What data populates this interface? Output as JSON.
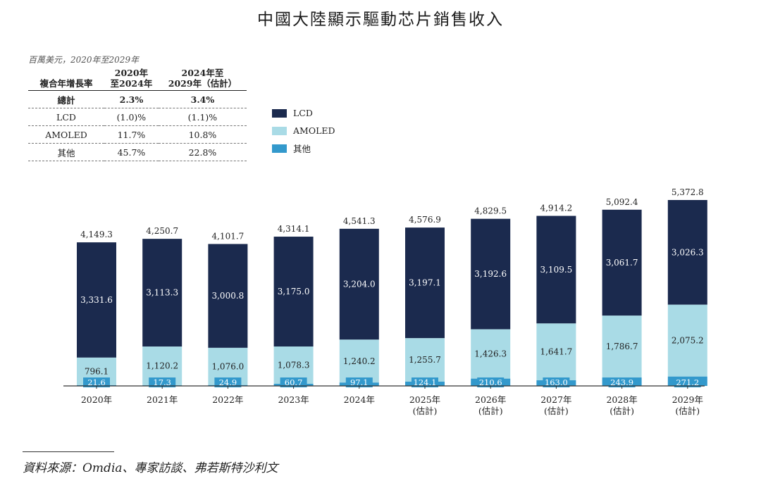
{
  "title": "中國大陸顯示驅動芯片銷售收入",
  "unit_label": "百萬美元，2020年至2029年",
  "cagr_table": {
    "header_label": "複合年增長率",
    "col1": [
      "2020年",
      "至2024年"
    ],
    "col2": [
      "2024年至",
      "2029年（估計）"
    ],
    "rows": [
      {
        "label": "總計",
        "v1": "2.3%",
        "v2": "3.4%"
      },
      {
        "label": "LCD",
        "v1": "(1.0)%",
        "v2": "(1.1)%"
      },
      {
        "label": "AMOLED",
        "v1": "11.7%",
        "v2": "10.8%"
      },
      {
        "label": "其他",
        "v1": "45.7%",
        "v2": "22.8%"
      }
    ]
  },
  "legend": [
    {
      "label": "LCD",
      "color": "#1b2a4e"
    },
    {
      "label": "AMOLED",
      "color": "#a9dbe6"
    },
    {
      "label": "其他",
      "color": "#3399cc"
    }
  ],
  "chart_data": {
    "type": "bar",
    "stacked": true,
    "title": "中國大陸顯示驅動芯片銷售收入",
    "ylabel": "百萬美元",
    "categories": [
      "2020年",
      "2021年",
      "2022年",
      "2023年",
      "2024年",
      "2025年",
      "2026年",
      "2027年",
      "2028年",
      "2029年"
    ],
    "category_sublabels": [
      "",
      "",
      "",
      "",
      "",
      "(估計)",
      "(估計)",
      "(估計)",
      "(估計)",
      "(估計)"
    ],
    "series": [
      {
        "name": "其他",
        "color": "#3399cc",
        "values": [
          21.6,
          17.3,
          24.9,
          60.7,
          97.1,
          124.1,
          210.6,
          163.0,
          243.9,
          271.2
        ],
        "labels": [
          "21.6",
          "17.3",
          "24.9",
          "60.7",
          "97.1",
          "124.1",
          "210.6",
          "163.0",
          "243.9",
          "271.2"
        ]
      },
      {
        "name": "AMOLED",
        "color": "#a9dbe6",
        "values": [
          796.1,
          1120.2,
          1076.0,
          1078.3,
          1240.2,
          1255.7,
          1426.3,
          1641.7,
          1786.7,
          2075.2
        ],
        "labels": [
          "796.1",
          "1,120.2",
          "1,076.0",
          "1,078.3",
          "1,240.2",
          "1,255.7",
          "1,426.3",
          "1,641.7",
          "1,786.7",
          "2,075.2"
        ]
      },
      {
        "name": "LCD",
        "color": "#1b2a4e",
        "values": [
          3331.6,
          3113.3,
          3000.8,
          3175.0,
          3204.0,
          3197.1,
          3192.6,
          3109.5,
          3061.7,
          3026.3
        ],
        "labels": [
          "3,331.6",
          "3,113.3",
          "3,000.8",
          "3,175.0",
          "3,204.0",
          "3,197.1",
          "3,192.6",
          "3,109.5",
          "3,061.7",
          "3,026.3"
        ]
      }
    ],
    "totals": [
      4149.3,
      4250.7,
      4101.7,
      4314.1,
      4541.3,
      4576.9,
      4829.5,
      4914.2,
      5092.4,
      5372.8
    ],
    "total_labels": [
      "4,149.3",
      "4,250.7",
      "4,101.7",
      "4,314.1",
      "4,541.3",
      "4,576.9",
      "4,829.5",
      "4,914.2",
      "5,092.4",
      "5,372.8"
    ],
    "ylim": [
      0,
      5372.8
    ],
    "grid": false
  },
  "source": "資料來源：Omdia、專家訪談、弗若斯特沙利文"
}
